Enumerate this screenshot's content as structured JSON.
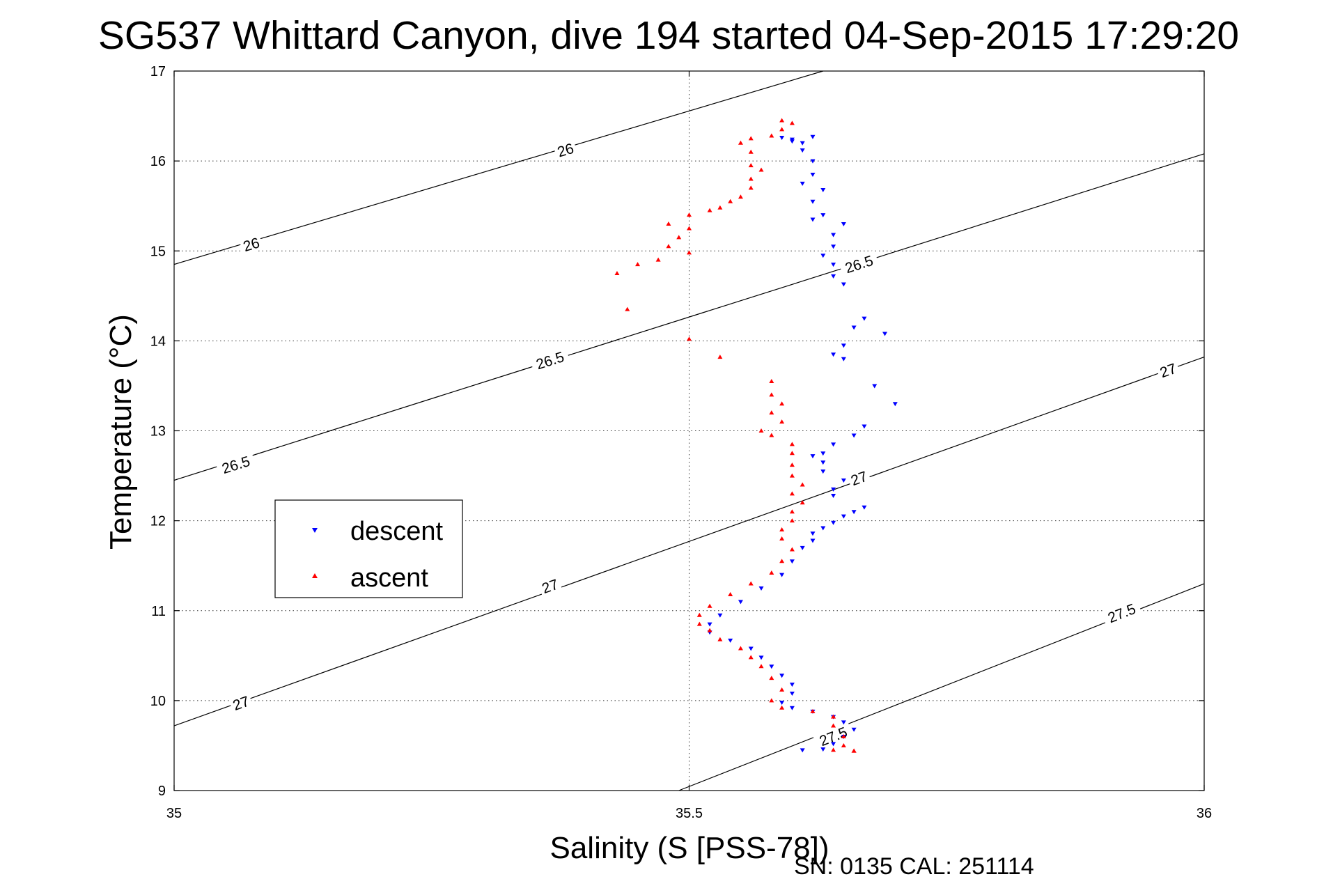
{
  "chart_data": {
    "type": "scatter",
    "title": "SG537 Whittard Canyon, dive 194 started 04-Sep-2015 17:29:20",
    "xlabel": "Salinity (S [PSS-78])",
    "ylabel": "Temperature (°C)",
    "xlim": [
      35,
      36
    ],
    "ylim": [
      9,
      17
    ],
    "xticks": [
      "35",
      "35.5",
      "36"
    ],
    "yticks": [
      "9",
      "10",
      "11",
      "12",
      "13",
      "14",
      "15",
      "16",
      "17"
    ],
    "grid": true,
    "legend_placement": "left",
    "footer": "SN: 0135  CAL: 251114",
    "density_contours": [
      {
        "label": "26",
        "x": [
          35,
          35.63
        ],
        "y": [
          14.85,
          17.0
        ]
      },
      {
        "label": "26.5",
        "x": [
          35,
          36
        ],
        "y": [
          12.45,
          16.08
        ]
      },
      {
        "label": "27",
        "x": [
          35,
          36
        ],
        "y": [
          9.72,
          13.82
        ]
      },
      {
        "label": "27.5",
        "x": [
          35.49,
          36
        ],
        "y": [
          9.0,
          11.3
        ]
      }
    ],
    "contour_labels": [
      {
        "text": "26",
        "x": 35.075,
        "y": 15.07
      },
      {
        "text": "26",
        "x": 35.38,
        "y": 16.12
      },
      {
        "text": "26.5",
        "x": 35.06,
        "y": 12.62
      },
      {
        "text": "26.5",
        "x": 35.365,
        "y": 13.78
      },
      {
        "text": "26.5",
        "x": 35.665,
        "y": 14.85
      },
      {
        "text": "27",
        "x": 35.065,
        "y": 9.97
      },
      {
        "text": "27",
        "x": 35.365,
        "y": 11.27
      },
      {
        "text": "27",
        "x": 35.665,
        "y": 12.47
      },
      {
        "text": "27",
        "x": 35.965,
        "y": 13.67
      },
      {
        "text": "27.5",
        "x": 35.64,
        "y": 9.6
      },
      {
        "text": "27.5",
        "x": 35.92,
        "y": 10.97
      }
    ],
    "series": [
      {
        "name": "descent",
        "color": "#0000ff",
        "marker": "triangle-down",
        "points": [
          [
            35.62,
            16.27
          ],
          [
            35.59,
            16.26
          ],
          [
            35.6,
            16.24
          ],
          [
            35.6,
            16.22
          ],
          [
            35.61,
            16.2
          ],
          [
            35.61,
            16.12
          ],
          [
            35.62,
            16.0
          ],
          [
            35.62,
            15.85
          ],
          [
            35.61,
            15.75
          ],
          [
            35.63,
            15.68
          ],
          [
            35.62,
            15.55
          ],
          [
            35.63,
            15.4
          ],
          [
            35.62,
            15.35
          ],
          [
            35.65,
            15.3
          ],
          [
            35.64,
            15.18
          ],
          [
            35.64,
            15.05
          ],
          [
            35.63,
            14.95
          ],
          [
            35.64,
            14.85
          ],
          [
            35.64,
            14.72
          ],
          [
            35.65,
            14.63
          ],
          [
            35.67,
            14.25
          ],
          [
            35.66,
            14.15
          ],
          [
            35.69,
            14.08
          ],
          [
            35.65,
            13.95
          ],
          [
            35.64,
            13.85
          ],
          [
            35.65,
            13.8
          ],
          [
            35.68,
            13.5
          ],
          [
            35.7,
            13.3
          ],
          [
            35.67,
            13.05
          ],
          [
            35.66,
            12.95
          ],
          [
            35.64,
            12.85
          ],
          [
            35.63,
            12.75
          ],
          [
            35.62,
            12.72
          ],
          [
            35.63,
            12.65
          ],
          [
            35.63,
            12.55
          ],
          [
            35.65,
            12.45
          ],
          [
            35.64,
            12.35
          ],
          [
            35.64,
            12.28
          ],
          [
            35.67,
            12.15
          ],
          [
            35.66,
            12.1
          ],
          [
            35.65,
            12.05
          ],
          [
            35.64,
            11.98
          ],
          [
            35.63,
            11.92
          ],
          [
            35.62,
            11.86
          ],
          [
            35.62,
            11.78
          ],
          [
            35.61,
            11.7
          ],
          [
            35.6,
            11.55
          ],
          [
            35.59,
            11.4
          ],
          [
            35.57,
            11.25
          ],
          [
            35.55,
            11.1
          ],
          [
            35.53,
            10.95
          ],
          [
            35.52,
            10.85
          ],
          [
            35.52,
            10.76
          ],
          [
            35.54,
            10.67
          ],
          [
            35.56,
            10.58
          ],
          [
            35.57,
            10.48
          ],
          [
            35.58,
            10.38
          ],
          [
            35.59,
            10.28
          ],
          [
            35.6,
            10.18
          ],
          [
            35.6,
            10.08
          ],
          [
            35.59,
            9.98
          ],
          [
            35.6,
            9.92
          ],
          [
            35.62,
            9.88
          ],
          [
            35.64,
            9.82
          ],
          [
            35.65,
            9.76
          ],
          [
            35.66,
            9.68
          ],
          [
            35.65,
            9.6
          ],
          [
            35.64,
            9.52
          ],
          [
            35.63,
            9.46
          ],
          [
            35.61,
            9.45
          ]
        ]
      },
      {
        "name": "ascent",
        "color": "#ff0000",
        "marker": "triangle-up",
        "points": [
          [
            35.59,
            16.45
          ],
          [
            35.6,
            16.42
          ],
          [
            35.59,
            16.35
          ],
          [
            35.58,
            16.28
          ],
          [
            35.56,
            16.25
          ],
          [
            35.55,
            16.2
          ],
          [
            35.56,
            16.1
          ],
          [
            35.56,
            15.95
          ],
          [
            35.57,
            15.9
          ],
          [
            35.56,
            15.8
          ],
          [
            35.56,
            15.7
          ],
          [
            35.55,
            15.6
          ],
          [
            35.54,
            15.55
          ],
          [
            35.53,
            15.48
          ],
          [
            35.52,
            15.45
          ],
          [
            35.5,
            15.4
          ],
          [
            35.48,
            15.3
          ],
          [
            35.5,
            15.25
          ],
          [
            35.49,
            15.15
          ],
          [
            35.48,
            15.05
          ],
          [
            35.5,
            14.98
          ],
          [
            35.47,
            14.9
          ],
          [
            35.45,
            14.85
          ],
          [
            35.43,
            14.75
          ],
          [
            35.44,
            14.35
          ],
          [
            35.5,
            14.02
          ],
          [
            35.53,
            13.82
          ],
          [
            35.58,
            13.55
          ],
          [
            35.58,
            13.4
          ],
          [
            35.59,
            13.3
          ],
          [
            35.58,
            13.2
          ],
          [
            35.59,
            13.1
          ],
          [
            35.57,
            13.0
          ],
          [
            35.58,
            12.95
          ],
          [
            35.6,
            12.85
          ],
          [
            35.6,
            12.75
          ],
          [
            35.6,
            12.62
          ],
          [
            35.6,
            12.5
          ],
          [
            35.61,
            12.4
          ],
          [
            35.6,
            12.3
          ],
          [
            35.61,
            12.2
          ],
          [
            35.6,
            12.1
          ],
          [
            35.6,
            12.0
          ],
          [
            35.59,
            11.9
          ],
          [
            35.59,
            11.8
          ],
          [
            35.6,
            11.68
          ],
          [
            35.59,
            11.55
          ],
          [
            35.58,
            11.42
          ],
          [
            35.56,
            11.3
          ],
          [
            35.54,
            11.18
          ],
          [
            35.52,
            11.05
          ],
          [
            35.51,
            10.95
          ],
          [
            35.51,
            10.85
          ],
          [
            35.52,
            10.78
          ],
          [
            35.53,
            10.68
          ],
          [
            35.55,
            10.58
          ],
          [
            35.56,
            10.48
          ],
          [
            35.57,
            10.38
          ],
          [
            35.58,
            10.25
          ],
          [
            35.59,
            10.12
          ],
          [
            35.58,
            10.0
          ],
          [
            35.59,
            9.92
          ],
          [
            35.62,
            9.88
          ],
          [
            35.64,
            9.82
          ],
          [
            35.64,
            9.72
          ],
          [
            35.65,
            9.6
          ],
          [
            35.65,
            9.5
          ],
          [
            35.64,
            9.45
          ],
          [
            35.66,
            9.44
          ],
          [
            35.66,
            9.44
          ]
        ]
      }
    ]
  }
}
